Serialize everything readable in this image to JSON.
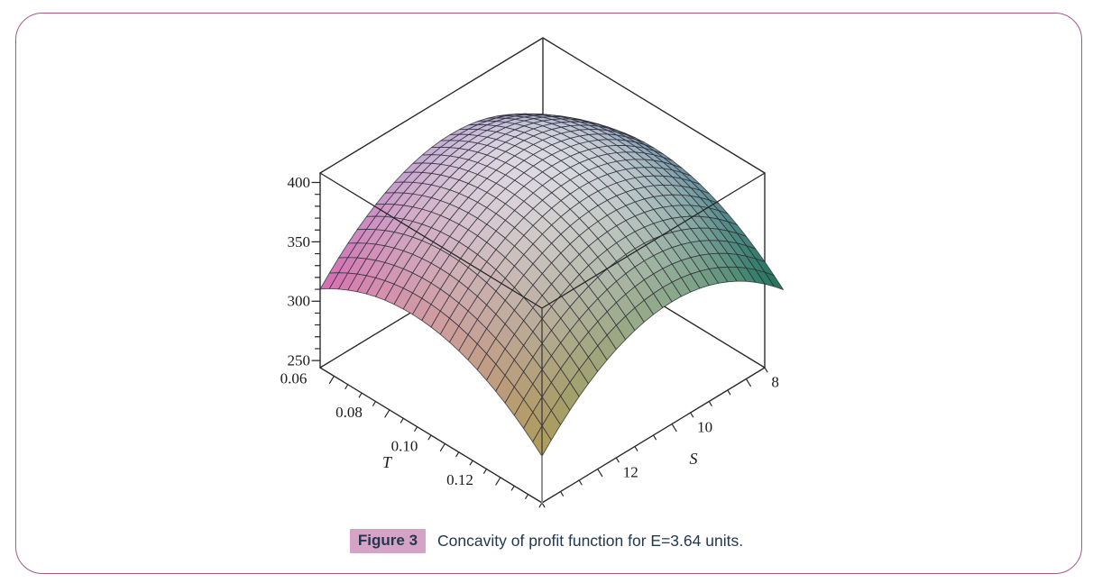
{
  "figure": {
    "badge": "Figure 3",
    "caption": "Concavity of profit function for E=3.64 units.",
    "badge_bg": "#d5a3c5",
    "caption_color": "#23384e",
    "frame_border_color": "#a4588e"
  },
  "chart_data": {
    "type": "surface",
    "description": "3D concave dome surface of the profit function plotted over T and S inside a boxed axes frame",
    "x_axis": {
      "name": "T",
      "range": [
        0.055,
        0.135
      ],
      "major_ticks": [
        0.06,
        0.08,
        0.1,
        0.12
      ],
      "minor_step": 0.005
    },
    "y_axis": {
      "name": "S",
      "range": [
        7.5,
        13.5
      ],
      "major_ticks": [
        8,
        10,
        12
      ],
      "minor_step": 0.5
    },
    "z_axis": {
      "name": "",
      "range": [
        244,
        408
      ],
      "major_ticks": [
        250,
        300,
        350,
        400
      ],
      "minor_step": 10
    },
    "grid_on": false,
    "legend": null,
    "surface": {
      "formula": "z = 400 - 24000*(T-0.088)^2 - 5.2*(S-10)^2",
      "zmax": 400,
      "t0": 0.088,
      "s0": 10.0,
      "aT": 24000,
      "aS": 5.2,
      "domain_T": [
        0.055,
        0.135
      ],
      "domain_S": [
        7.0,
        13.5
      ],
      "grid": [
        24,
        26
      ],
      "z_floor_for_shading": 283,
      "corner_colors": {
        "left_Tmin_Smax": [
          212,
          96,
          172
        ],
        "front_Tmax_Smax": [
          176,
          158,
          92
        ],
        "right_Tmax_Smin": [
          25,
          110,
          84
        ],
        "back_Tmin_Smin": [
          66,
          82,
          168
        ]
      },
      "sample_T": [
        0.055,
        0.075,
        0.095,
        0.115,
        0.135
      ],
      "sample_S": [
        7.5,
        9.0,
        10.5,
        12.0,
        13.5
      ],
      "sample_z": [
        [
          341.4,
          368.7,
          372.6,
          353.1,
          310.2
        ],
        [
          363.4,
          390.7,
          394.6,
          375.1,
          332.2
        ],
        [
          366.3,
          393.6,
          397.5,
          378.0,
          335.1
        ],
        [
          350.0,
          377.3,
          381.2,
          361.7,
          318.8
        ],
        [
          314.5,
          341.8,
          345.7,
          326.3,
          283.3
        ]
      ]
    },
    "mesh_line_color": "#2b2b33",
    "box_edge_color": "#262626",
    "hidden_edge_gray": "#8f8f8f",
    "label_color": "#1a1a1a"
  }
}
